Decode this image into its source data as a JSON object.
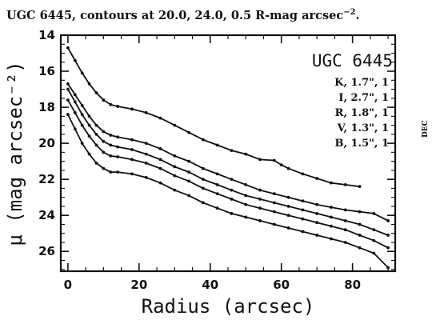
{
  "caption": {
    "text": "UGC 6445, contours at 20.0, 24.0, 0.5 R-mag arcsec",
    "superscript": "−2",
    "end": "."
  },
  "side_label": "DEC",
  "chart_data": {
    "type": "line",
    "title": "UGC 6445",
    "xlabel": "Radius (arcsec)",
    "ylabel": "μ (mag arcsec⁻²)",
    "xlim": [
      -2,
      92
    ],
    "ylim": [
      27.1,
      14.0
    ],
    "y_inverted": true,
    "xticks": [
      0,
      20,
      40,
      60,
      80
    ],
    "yticks": [
      14,
      16,
      18,
      20,
      22,
      24,
      26
    ],
    "legend_position": "top-right",
    "legend": [
      "K, 1.7\", 1",
      "I, 2.7\", 1",
      "R, 1.8\", 1",
      "V, 1.3\", 1",
      "B, 1.5\", 1"
    ],
    "series": [
      {
        "name": "K",
        "x": [
          0,
          2,
          4,
          6,
          8,
          10,
          12,
          14,
          18,
          22,
          26,
          30,
          34,
          38,
          42,
          46,
          50,
          54,
          58,
          60,
          62,
          66,
          70,
          74,
          78,
          82
        ],
        "y": [
          14.7,
          15.4,
          16.1,
          16.7,
          17.2,
          17.6,
          17.85,
          17.95,
          18.1,
          18.3,
          18.6,
          19.0,
          19.4,
          19.8,
          20.1,
          20.4,
          20.6,
          20.9,
          20.95,
          21.2,
          21.4,
          21.7,
          21.95,
          22.2,
          22.3,
          22.4
        ]
      },
      {
        "name": "I",
        "x": [
          0,
          2,
          4,
          6,
          8,
          10,
          12,
          14,
          18,
          22,
          26,
          30,
          34,
          38,
          42,
          46,
          50,
          54,
          58,
          62,
          66,
          70,
          74,
          78,
          82,
          86,
          90
        ],
        "y": [
          16.7,
          17.3,
          17.9,
          18.5,
          19.0,
          19.35,
          19.55,
          19.65,
          19.8,
          20.0,
          20.3,
          20.7,
          21.0,
          21.4,
          21.7,
          22.0,
          22.3,
          22.6,
          22.8,
          23.0,
          23.2,
          23.4,
          23.55,
          23.7,
          23.8,
          23.9,
          24.3
        ]
      },
      {
        "name": "R",
        "x": [
          0,
          2,
          4,
          6,
          8,
          10,
          12,
          14,
          18,
          22,
          26,
          30,
          34,
          38,
          42,
          46,
          50,
          54,
          58,
          62,
          66,
          70,
          74,
          78,
          82,
          86,
          90
        ],
        "y": [
          17.0,
          17.7,
          18.4,
          19.0,
          19.5,
          19.9,
          20.1,
          20.2,
          20.35,
          20.6,
          20.9,
          21.3,
          21.6,
          22.0,
          22.3,
          22.6,
          22.9,
          23.1,
          23.3,
          23.5,
          23.7,
          23.9,
          24.1,
          24.3,
          24.5,
          24.8,
          25.1
        ]
      },
      {
        "name": "V",
        "x": [
          0,
          2,
          4,
          6,
          8,
          10,
          12,
          14,
          18,
          22,
          26,
          30,
          34,
          38,
          42,
          46,
          50,
          54,
          58,
          62,
          66,
          70,
          74,
          78,
          82,
          86,
          90
        ],
        "y": [
          17.6,
          18.3,
          19.0,
          19.6,
          20.1,
          20.5,
          20.7,
          20.75,
          20.9,
          21.1,
          21.4,
          21.8,
          22.1,
          22.5,
          22.8,
          23.1,
          23.4,
          23.6,
          23.8,
          24.0,
          24.2,
          24.4,
          24.6,
          24.8,
          25.1,
          25.4,
          25.8
        ]
      },
      {
        "name": "B",
        "x": [
          0,
          2,
          4,
          6,
          8,
          10,
          12,
          14,
          18,
          22,
          26,
          30,
          34,
          38,
          42,
          46,
          50,
          54,
          58,
          62,
          66,
          70,
          74,
          78,
          82,
          86,
          90
        ],
        "y": [
          18.4,
          19.2,
          20.0,
          20.6,
          21.1,
          21.4,
          21.6,
          21.6,
          21.7,
          21.9,
          22.2,
          22.6,
          22.9,
          23.3,
          23.6,
          23.9,
          24.1,
          24.3,
          24.5,
          24.7,
          24.9,
          25.1,
          25.3,
          25.5,
          25.8,
          26.1,
          26.9
        ]
      }
    ]
  }
}
